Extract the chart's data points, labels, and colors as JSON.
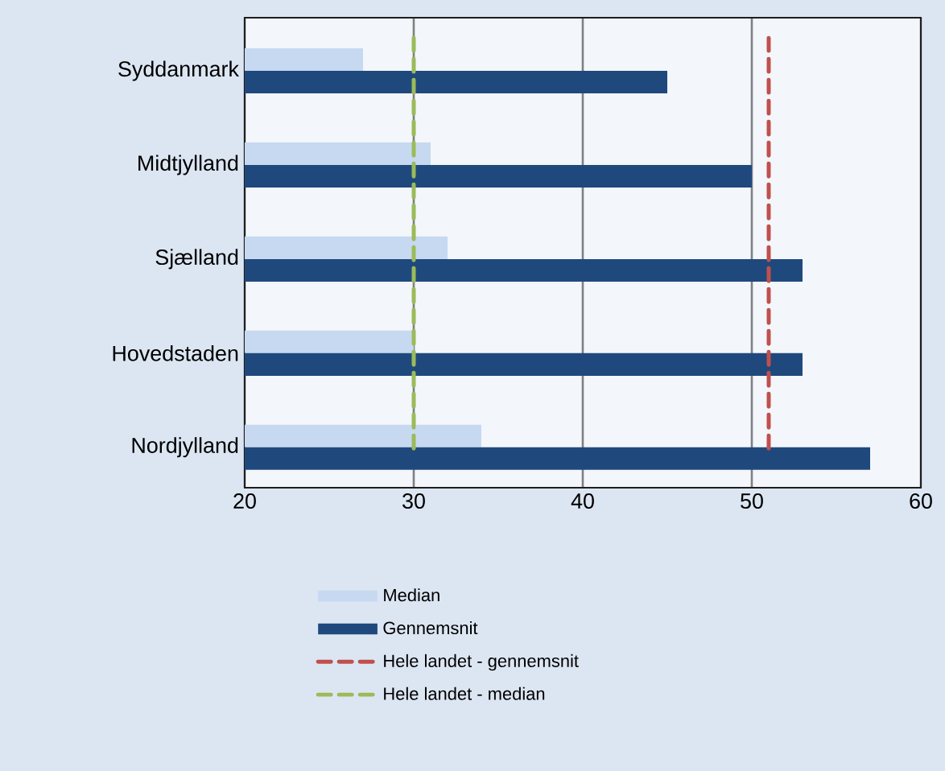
{
  "chart_data": {
    "type": "bar",
    "orientation": "horizontal",
    "categories": [
      "Syddanmark",
      "Midtjylland",
      "Sjælland",
      "Hovedstaden",
      "Nordjylland"
    ],
    "series": [
      {
        "name": "Median",
        "color": "#c6d9f0",
        "values": [
          27,
          31,
          32,
          30,
          34
        ]
      },
      {
        "name": "Gennemsnit",
        "color": "#1f497d",
        "values": [
          45,
          50,
          53,
          53,
          57
        ]
      }
    ],
    "ref_lines": [
      {
        "axis": "x",
        "value": 51,
        "label": "Hele landet - gennemsnit",
        "color": "#c0504d",
        "line_style": "dashed"
      },
      {
        "axis": "x",
        "value": 30,
        "label": "Hele landet - median",
        "color": "#9bbb59",
        "line_style": "dashed"
      }
    ],
    "xlim": [
      20,
      60
    ],
    "xticks": [
      20,
      30,
      40,
      50,
      60
    ],
    "grid": "x",
    "legend": "bottom"
  }
}
